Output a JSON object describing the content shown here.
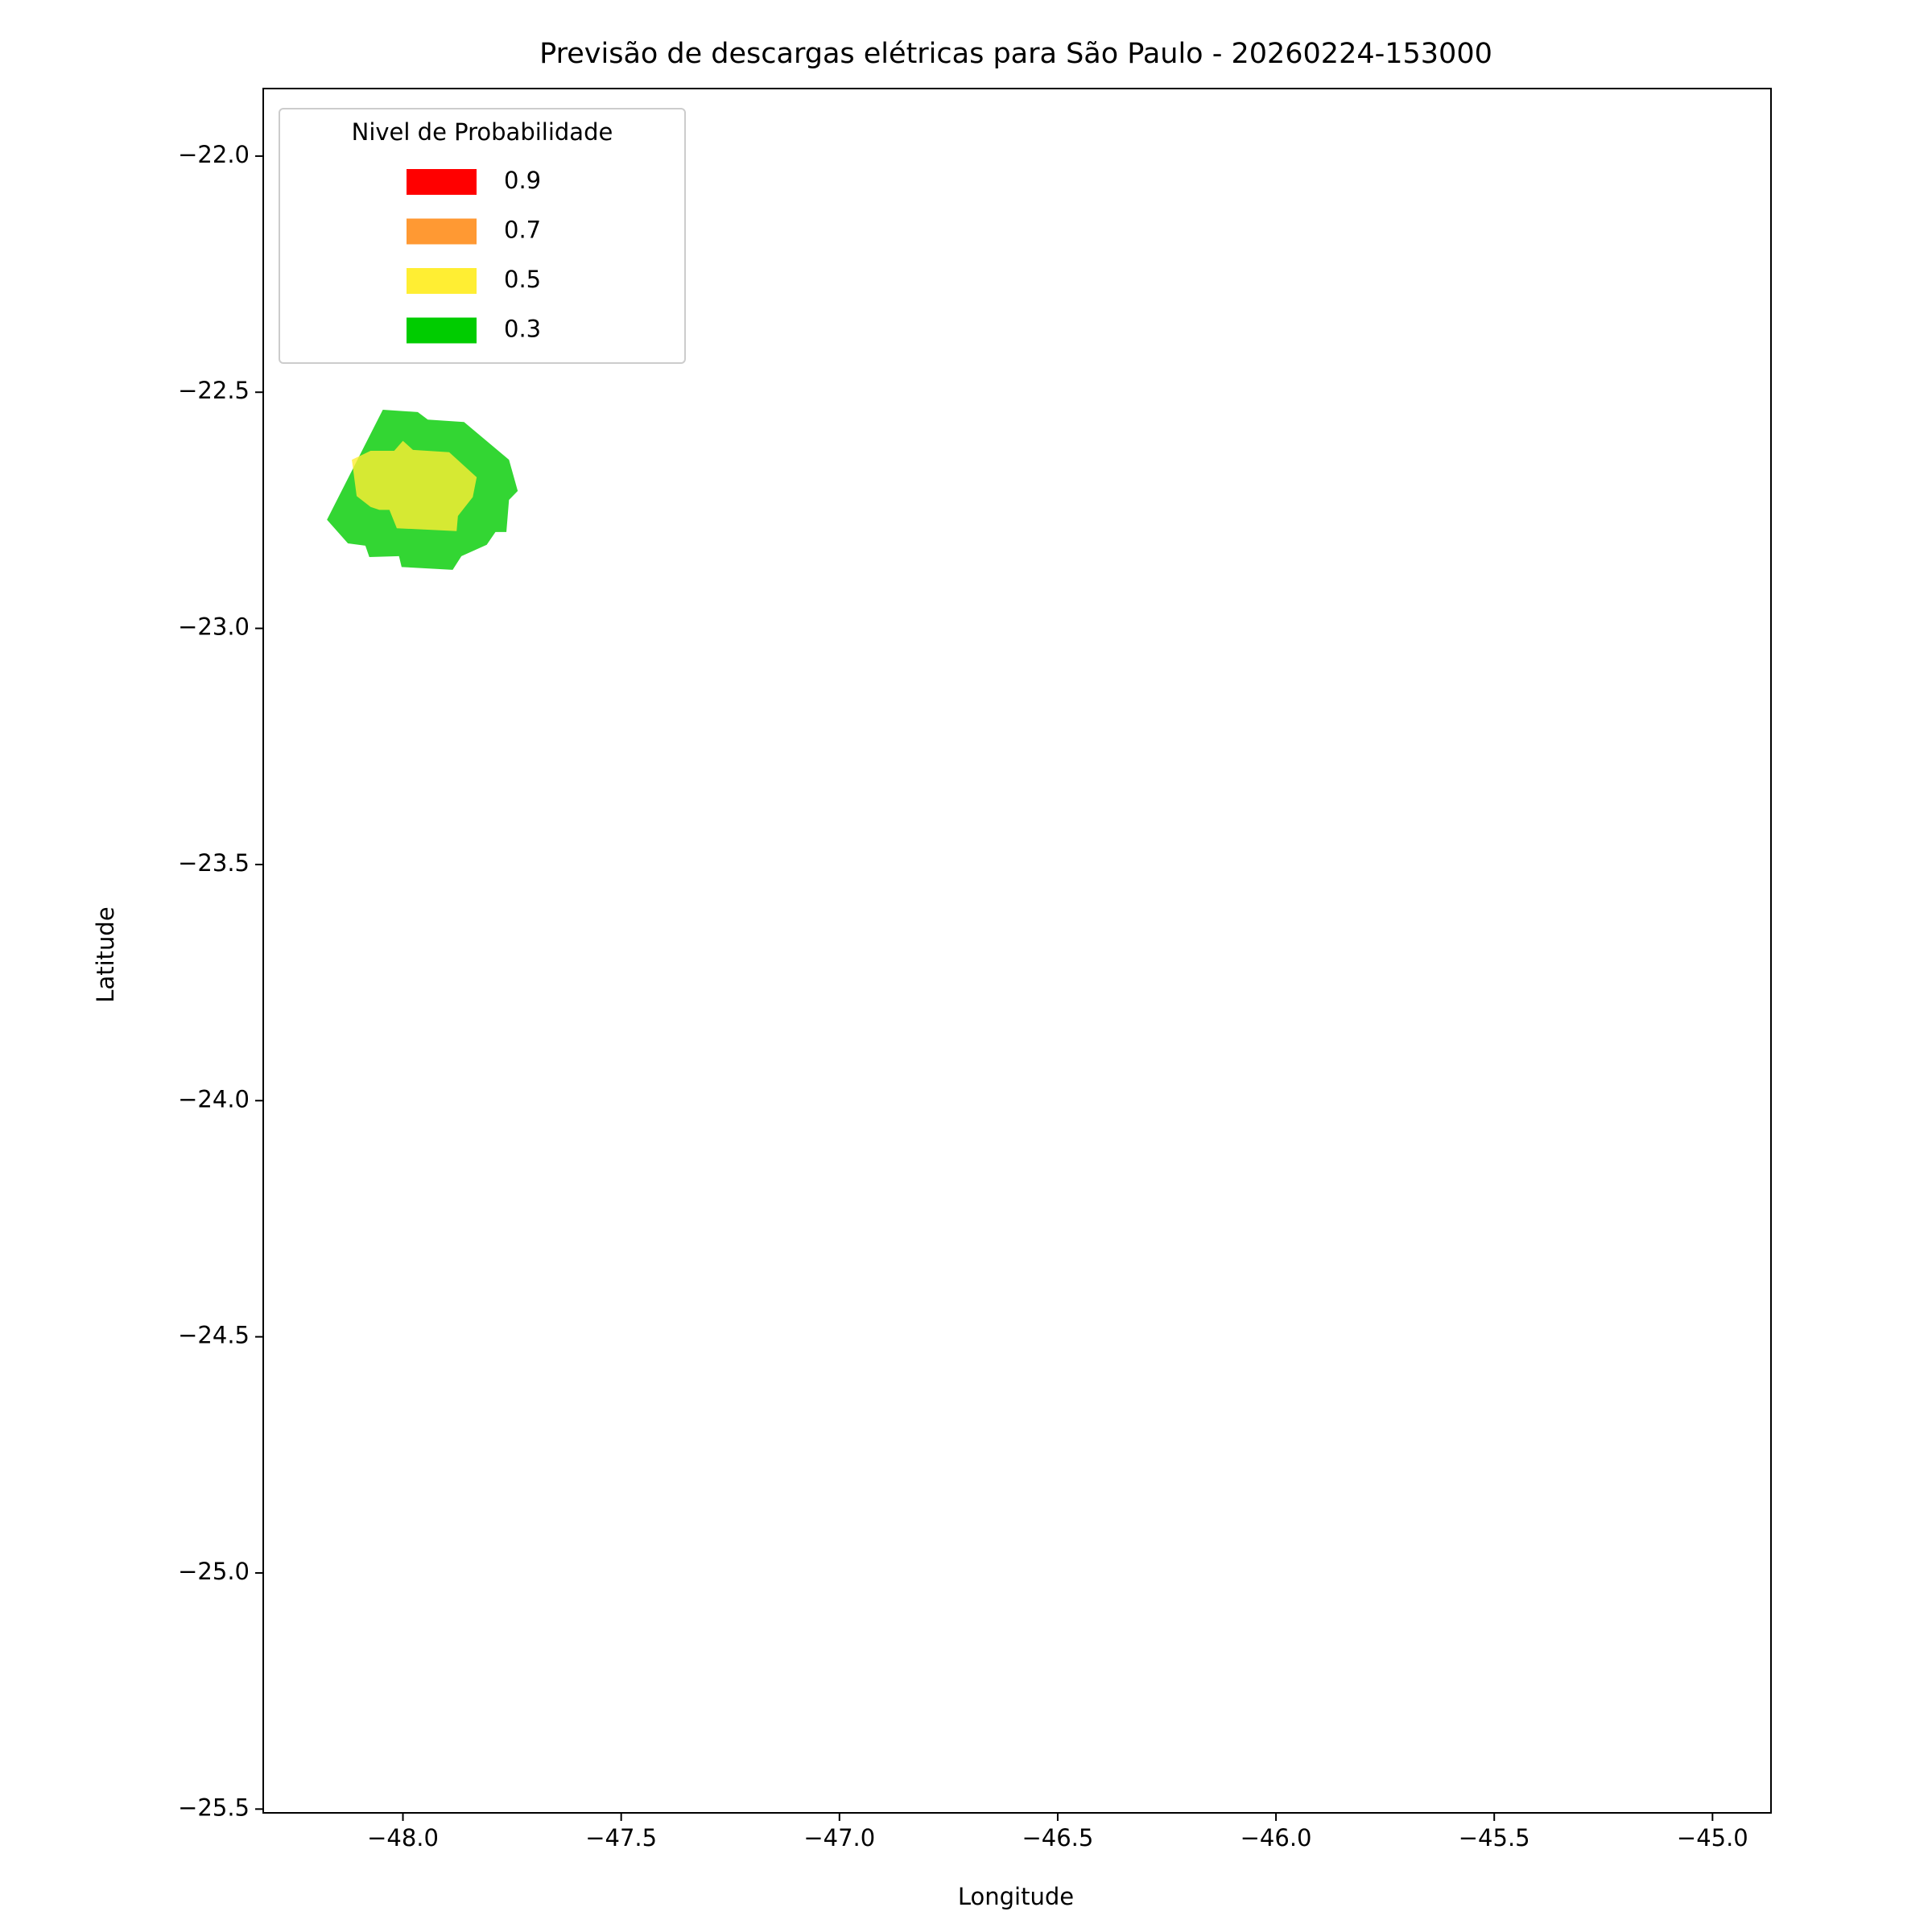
{
  "chart_data": {
    "type": "contour",
    "title": "Previsão de descargas elétricas para São Paulo - 20260224-153000",
    "xlabel": "Longitude",
    "ylabel": "Latitude",
    "xlim": [
      -48.32,
      -44.866
    ],
    "ylim": [
      -25.508,
      -21.857
    ],
    "xticks": [
      {
        "value": -48.0,
        "label": "−48.0"
      },
      {
        "value": -47.5,
        "label": "−47.5"
      },
      {
        "value": -47.0,
        "label": "−47.0"
      },
      {
        "value": -46.5,
        "label": "−46.5"
      },
      {
        "value": -46.0,
        "label": "−46.0"
      },
      {
        "value": -45.5,
        "label": "−45.5"
      },
      {
        "value": -45.0,
        "label": "−45.0"
      }
    ],
    "yticks": [
      {
        "value": -22.0,
        "label": "−22.0"
      },
      {
        "value": -22.5,
        "label": "−22.5"
      },
      {
        "value": -23.0,
        "label": "−23.0"
      },
      {
        "value": -23.5,
        "label": "−23.5"
      },
      {
        "value": -24.0,
        "label": "−24.0"
      },
      {
        "value": -24.5,
        "label": "−24.5"
      },
      {
        "value": -25.0,
        "label": "−25.0"
      },
      {
        "value": -25.5,
        "label": "−25.5"
      }
    ],
    "legend": "upper left",
    "legend_title": "Nivel de Probabilidade",
    "fill_opacity": 0.8,
    "series": [
      {
        "name": "0.9",
        "color": "#ff0000",
        "polygons": []
      },
      {
        "name": "0.7",
        "color": "#ff9933",
        "polygons": []
      },
      {
        "name": "0.5",
        "color": "#ffee33",
        "polygons": [
          {
            "lon": [
              -48.117,
              -48.074,
              -48.02,
              -48.0,
              -47.977,
              -47.894,
              -47.831,
              -47.84,
              -47.874,
              -47.877,
              -48.014,
              -48.031,
              -48.054,
              -48.074,
              -48.106
            ],
            "lat": [
              -22.643,
              -22.624,
              -22.624,
              -22.603,
              -22.622,
              -22.627,
              -22.68,
              -22.722,
              -22.762,
              -22.794,
              -22.788,
              -22.749,
              -22.749,
              -22.743,
              -22.72
            ]
          }
        ]
      },
      {
        "name": "0.3",
        "color": "#00cc00",
        "polygons": [
          {
            "lon": [
              -48.046,
              -47.966,
              -47.943,
              -47.86,
              -47.757,
              -47.737,
              -47.757,
              -47.763,
              -47.788,
              -47.808,
              -47.866,
              -47.886,
              -48.003,
              -48.009,
              -48.077,
              -48.086,
              -48.126,
              -48.174
            ],
            "lat": [
              -22.537,
              -22.542,
              -22.558,
              -22.563,
              -22.643,
              -22.709,
              -22.728,
              -22.796,
              -22.796,
              -22.823,
              -22.847,
              -22.876,
              -22.87,
              -22.847,
              -22.849,
              -22.825,
              -22.82,
              -22.77
            ]
          }
        ]
      }
    ]
  }
}
